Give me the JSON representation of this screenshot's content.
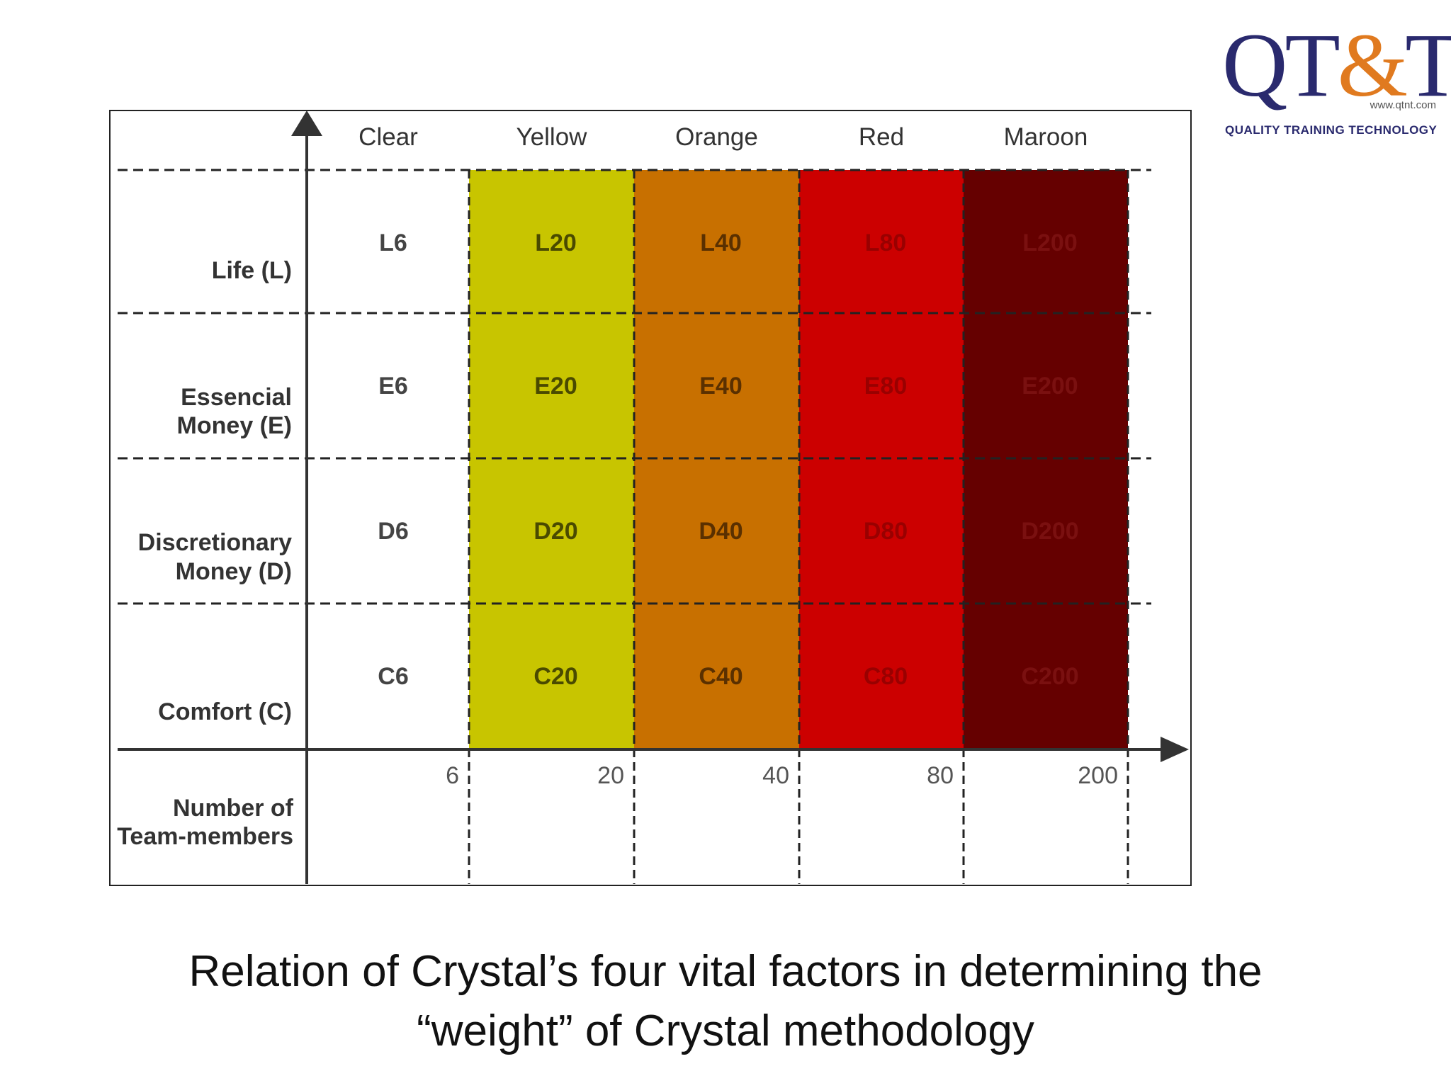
{
  "logo": {
    "mark_q": "Q",
    "mark_t1": "T",
    "mark_amp": "&",
    "mark_t2": "T",
    "url": "www.qtnt.com",
    "tagline": "QUALITY  TRAINING  TECHNOLOGY"
  },
  "chart_data": {
    "type": "table",
    "columns": [
      {
        "name": "Clear",
        "team_size": "6",
        "color": "#ffffff"
      },
      {
        "name": "Yellow",
        "team_size": "20",
        "color": "#c8c500"
      },
      {
        "name": "Orange",
        "team_size": "40",
        "color": "#c87000"
      },
      {
        "name": "Red",
        "team_size": "80",
        "color": "#cc0000"
      },
      {
        "name": "Maroon",
        "team_size": "200",
        "color": "#650000"
      }
    ],
    "rows": [
      {
        "label": [
          "Life (L)"
        ],
        "cells": [
          "L6",
          "L20",
          "L40",
          "L80",
          "L200"
        ]
      },
      {
        "label": [
          "Essencial",
          "Money (E)"
        ],
        "cells": [
          "E6",
          "E20",
          "E40",
          "E80",
          "E200"
        ]
      },
      {
        "label": [
          "Discretionary",
          "Money (D)"
        ],
        "cells": [
          "D6",
          "D20",
          "D40",
          "D80",
          "D200"
        ]
      },
      {
        "label": [
          "Comfort (C)"
        ],
        "cells": [
          "C6",
          "C20",
          "C40",
          "C80",
          "C200"
        ]
      }
    ],
    "x_axis_label": [
      "Number of",
      "Team-members"
    ]
  },
  "caption": {
    "line1": "Relation of Crystal’s four vital factors in determining the",
    "line2": "“weight” of Crystal methodology"
  }
}
